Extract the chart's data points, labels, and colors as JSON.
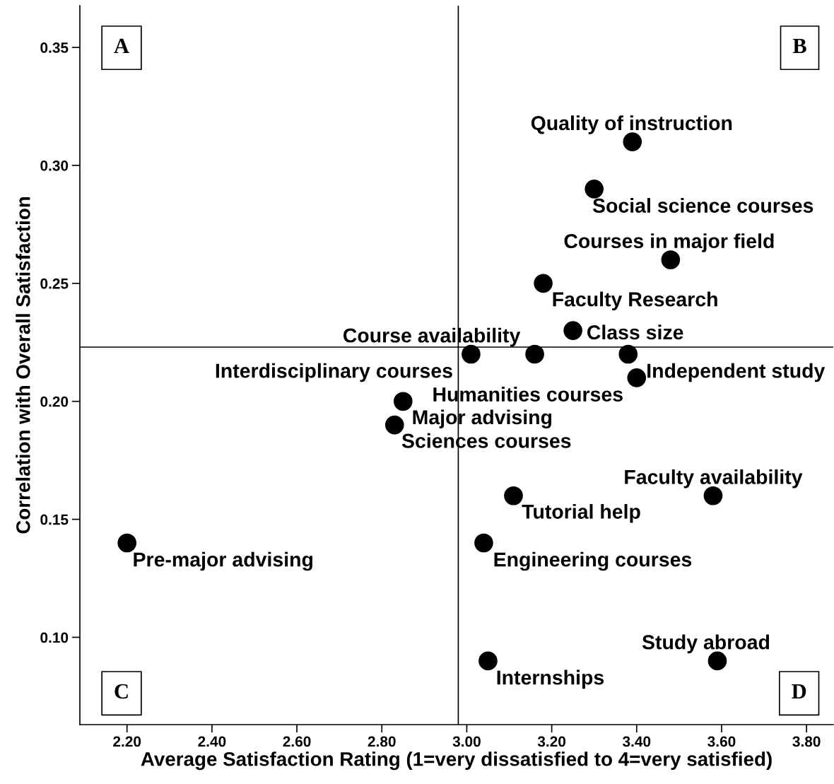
{
  "chart_data": {
    "type": "scatter",
    "xlabel": "Average Satisfaction Rating (1=very dissatisfied to 4=very satisfied)",
    "ylabel": "Correlation with Overall Satisfaction",
    "x": [
      3.39,
      3.3,
      3.48,
      3.18,
      3.25,
      3.01,
      3.16,
      3.38,
      3.4,
      2.85,
      2.83,
      3.58,
      3.11,
      3.04,
      2.2,
      3.59,
      3.05
    ],
    "values": [
      0.31,
      0.29,
      0.26,
      0.25,
      0.23,
      0.22,
      0.22,
      0.22,
      0.21,
      0.2,
      0.19,
      0.16,
      0.16,
      0.14,
      0.14,
      0.09,
      0.09
    ],
    "color": "#000000",
    "marker": "circle",
    "grid": false,
    "xlim": [
      2.089,
      3.863
    ],
    "ylim": [
      0.063,
      0.3677
    ],
    "xticks": [
      {
        "value": 2.2,
        "label": "2.20"
      },
      {
        "value": 2.4,
        "label": "2.40"
      },
      {
        "value": 2.6,
        "label": "2.60"
      },
      {
        "value": 2.8,
        "label": "2.80"
      },
      {
        "value": 3.0,
        "label": "3.00"
      },
      {
        "value": 3.2,
        "label": "3.20"
      },
      {
        "value": 3.4,
        "label": "3.40"
      },
      {
        "value": 3.6,
        "label": "3.60"
      },
      {
        "value": 3.8,
        "label": "3.80"
      }
    ],
    "yticks": [
      {
        "value": 0.1,
        "label": "0.10"
      },
      {
        "value": 0.15,
        "label": "0.15"
      },
      {
        "value": 0.2,
        "label": "0.20"
      },
      {
        "value": 0.25,
        "label": "0.25"
      },
      {
        "value": 0.3,
        "label": "0.30"
      },
      {
        "value": 0.35,
        "label": "0.35"
      }
    ],
    "ref_lines": [
      {
        "axis": "x",
        "value": 2.98,
        "color": "#000000"
      },
      {
        "axis": "y",
        "value": 0.223,
        "color": "#000000"
      }
    ],
    "annotations": [
      "A",
      "B",
      "C",
      "D",
      {
        "text": "Quality of instruction",
        "x": 3.39,
        "y": 0.31
      },
      {
        "text": "Social science courses",
        "x": 3.3,
        "y": 0.29
      },
      {
        "text": "Courses in major field",
        "x": 3.48,
        "y": 0.26
      },
      {
        "text": "Faculty Research",
        "x": 3.18,
        "y": 0.25
      },
      {
        "text": "Course availability",
        "x": 3.16,
        "y": 0.22
      },
      {
        "text": "Class size",
        "x": 3.25,
        "y": 0.23
      },
      {
        "text": "Independent study",
        "x": 3.38,
        "y": 0.22
      },
      {
        "text": "Interdisciplinary courses",
        "x": 3.01,
        "y": 0.22
      },
      {
        "text": "Humanities courses",
        "x": 3.4,
        "y": 0.21
      },
      {
        "text": "Major advising",
        "x": 2.85,
        "y": 0.2
      },
      {
        "text": "Sciences courses",
        "x": 2.83,
        "y": 0.19
      },
      {
        "text": "Faculty availability",
        "x": 3.58,
        "y": 0.16
      },
      {
        "text": "Tutorial help",
        "x": 3.11,
        "y": 0.16
      },
      {
        "text": "Pre-major advising",
        "x": 2.2,
        "y": 0.14
      },
      {
        "text": "Engineering courses",
        "x": 3.04,
        "y": 0.14
      },
      {
        "text": "Study abroad",
        "x": 3.59,
        "y": 0.09
      },
      {
        "text": "Internships",
        "x": 3.05,
        "y": 0.09
      }
    ]
  }
}
